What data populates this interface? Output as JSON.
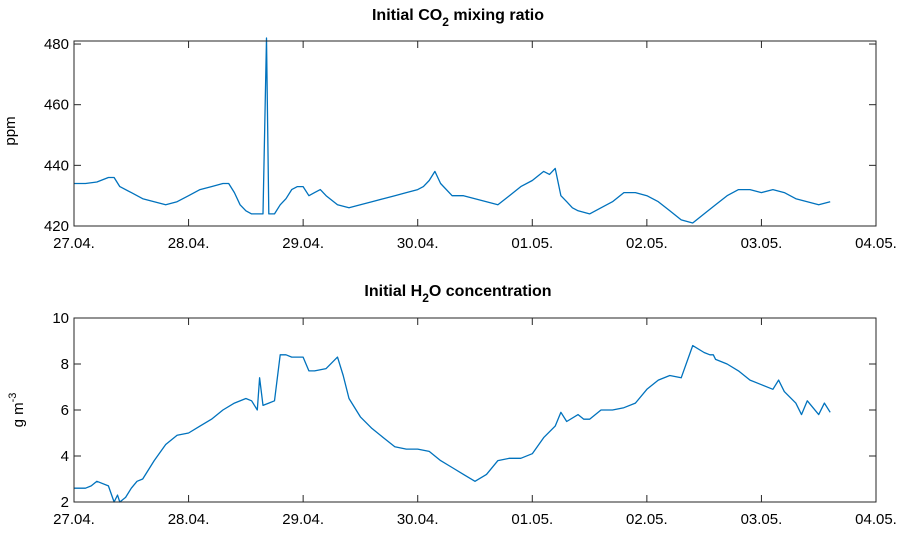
{
  "chart_data": [
    {
      "type": "line",
      "title": {
        "prefix": "Initial CO",
        "subscript": "2",
        "suffix": " mixing ratio"
      },
      "ylabel": "ppm",
      "x_ticks": [
        "27.04.",
        "28.04.",
        "29.04.",
        "30.04.",
        "01.05.",
        "02.05.",
        "03.05.",
        "04.05."
      ],
      "xlim": [
        0,
        7
      ],
      "ylim": [
        420,
        481
      ],
      "y_ticks": [
        420,
        440,
        460,
        480
      ],
      "grid": false,
      "line_color": "#0072BD",
      "series": [
        {
          "x": [
            0.0,
            0.1,
            0.2,
            0.3,
            0.35,
            0.4,
            0.5,
            0.6,
            0.7,
            0.8,
            0.9,
            1.0,
            1.1,
            1.2,
            1.3,
            1.35,
            1.4,
            1.45,
            1.5,
            1.55,
            1.6,
            1.65,
            1.68,
            1.7,
            1.75,
            1.8,
            1.85,
            1.9,
            1.95,
            2.0,
            2.05,
            2.1,
            2.15,
            2.2,
            2.3,
            2.4,
            2.5,
            2.6,
            2.7,
            2.8,
            2.9,
            3.0,
            3.05,
            3.1,
            3.15,
            3.2,
            3.3,
            3.4,
            3.5,
            3.6,
            3.7,
            3.8,
            3.9,
            4.0,
            4.1,
            4.15,
            4.2,
            4.25,
            4.3,
            4.35,
            4.4,
            4.5,
            4.6,
            4.7,
            4.8,
            4.9,
            5.0,
            5.1,
            5.2,
            5.3,
            5.4,
            5.5,
            5.6,
            5.7,
            5.8,
            5.9,
            6.0,
            6.1,
            6.2,
            6.3,
            6.4,
            6.5,
            6.6
          ],
          "y": [
            434,
            434,
            434.5,
            436,
            436,
            433,
            431,
            429,
            428,
            427,
            428,
            430,
            432,
            433,
            434,
            434,
            431,
            427,
            425,
            424,
            424,
            424,
            482,
            424,
            424,
            427,
            429,
            432,
            433,
            433,
            430,
            431,
            432,
            430,
            427,
            426,
            427,
            428,
            429,
            430,
            431,
            432,
            433,
            435,
            438,
            434,
            430,
            430,
            429,
            428,
            427,
            430,
            433,
            435,
            438,
            437,
            439,
            430,
            428,
            426,
            425,
            424,
            426,
            428,
            431,
            431,
            430,
            428,
            425,
            422,
            421,
            424,
            427,
            430,
            432,
            432,
            431,
            432,
            431,
            429,
            428,
            427,
            428
          ]
        }
      ]
    },
    {
      "type": "line",
      "title": {
        "prefix": "Initial H",
        "subscript": "2",
        "suffix": "O concentration"
      },
      "ylabel": {
        "text": "g m",
        "superscript": "-3"
      },
      "x_ticks": [
        "27.04.",
        "28.04.",
        "29.04.",
        "30.04.",
        "01.05.",
        "02.05.",
        "03.05.",
        "04.05."
      ],
      "xlim": [
        0,
        7
      ],
      "ylim": [
        2,
        10
      ],
      "y_ticks": [
        2,
        4,
        6,
        8,
        10
      ],
      "grid": false,
      "line_color": "#0072BD",
      "series": [
        {
          "x": [
            0.0,
            0.1,
            0.15,
            0.2,
            0.3,
            0.35,
            0.38,
            0.4,
            0.45,
            0.5,
            0.55,
            0.6,
            0.7,
            0.8,
            0.9,
            1.0,
            1.1,
            1.2,
            1.3,
            1.4,
            1.5,
            1.55,
            1.6,
            1.62,
            1.65,
            1.7,
            1.75,
            1.8,
            1.85,
            1.9,
            2.0,
            2.05,
            2.1,
            2.2,
            2.3,
            2.35,
            2.4,
            2.5,
            2.6,
            2.7,
            2.8,
            2.9,
            3.0,
            3.1,
            3.2,
            3.3,
            3.4,
            3.5,
            3.6,
            3.7,
            3.8,
            3.9,
            4.0,
            4.1,
            4.2,
            4.25,
            4.3,
            4.4,
            4.45,
            4.5,
            4.6,
            4.7,
            4.8,
            4.9,
            5.0,
            5.1,
            5.2,
            5.3,
            5.4,
            5.5,
            5.55,
            5.58,
            5.6,
            5.7,
            5.8,
            5.9,
            6.0,
            6.1,
            6.15,
            6.2,
            6.3,
            6.35,
            6.4,
            6.5,
            6.55,
            6.6
          ],
          "y": [
            2.6,
            2.6,
            2.7,
            2.9,
            2.7,
            2.0,
            2.3,
            2.0,
            2.2,
            2.6,
            2.9,
            3.0,
            3.8,
            4.5,
            4.9,
            5.0,
            5.3,
            5.6,
            6.0,
            6.3,
            6.5,
            6.4,
            6.0,
            7.4,
            6.2,
            6.3,
            6.4,
            8.4,
            8.4,
            8.3,
            8.3,
            7.7,
            7.7,
            7.8,
            8.3,
            7.5,
            6.5,
            5.7,
            5.2,
            4.8,
            4.4,
            4.3,
            4.3,
            4.2,
            3.8,
            3.5,
            3.2,
            2.9,
            3.2,
            3.8,
            3.9,
            3.9,
            4.1,
            4.8,
            5.3,
            5.9,
            5.5,
            5.8,
            5.6,
            5.6,
            6.0,
            6.0,
            6.1,
            6.3,
            6.9,
            7.3,
            7.5,
            7.4,
            8.8,
            8.5,
            8.4,
            8.4,
            8.2,
            8.0,
            7.7,
            7.3,
            7.1,
            6.9,
            7.3,
            6.8,
            6.3,
            5.8,
            6.4,
            5.8,
            6.3,
            5.9
          ]
        }
      ]
    }
  ]
}
